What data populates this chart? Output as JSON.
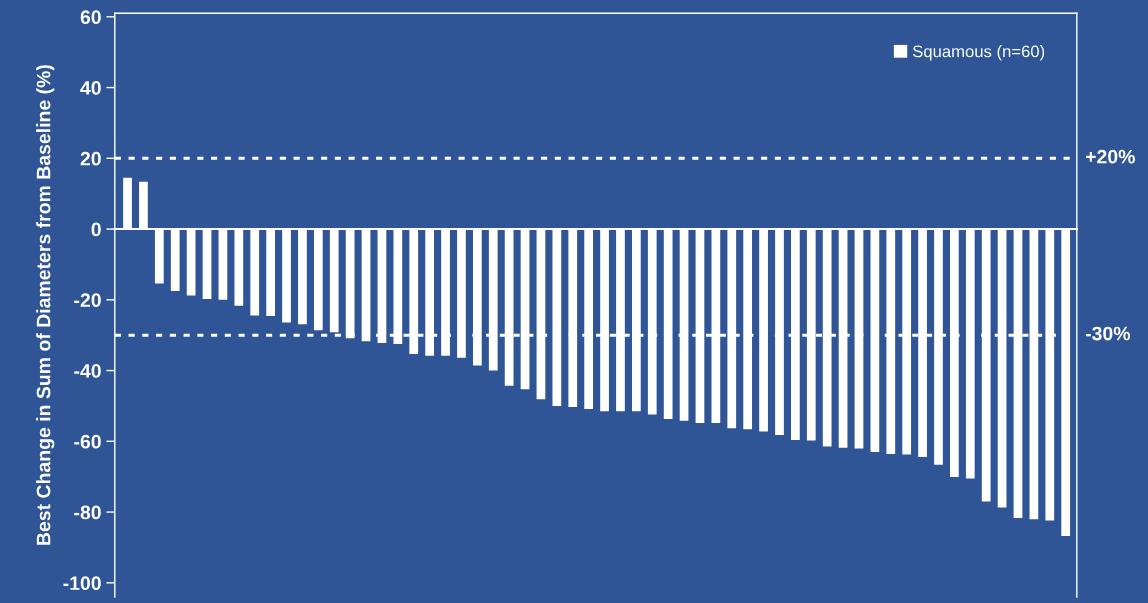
{
  "chart_data": {
    "type": "bar",
    "ylabel": "Best Change in Sum of Diameters from Baseline (%)",
    "categories": [
      null,
      null,
      null,
      null,
      null,
      null,
      null,
      null,
      null,
      null,
      null,
      null,
      null,
      null,
      null,
      null,
      null,
      null,
      null,
      null,
      null,
      null,
      null,
      null,
      null,
      null,
      null,
      null,
      null,
      null,
      null,
      null,
      null,
      null,
      null,
      null,
      null,
      null,
      null,
      null,
      null,
      null,
      null,
      null,
      null,
      null,
      null,
      null,
      null,
      null,
      null,
      null,
      null,
      null,
      null,
      null,
      null,
      null,
      null,
      null
    ],
    "series": [
      {
        "name": "Squamous (n=60)",
        "color": "#ffffff",
        "values": [
          14.5,
          13.4,
          -15.4,
          -17.5,
          -18.8,
          -19.8,
          -20,
          -21.7,
          -24.4,
          -24.6,
          -26.4,
          -26.9,
          -28.6,
          -29.2,
          -30.9,
          -31.7,
          -32.2,
          -32.5,
          -35.3,
          -35.8,
          -35.8,
          -36.4,
          -38.6,
          -40,
          -44.3,
          -45.3,
          -48.1,
          -50,
          -50.3,
          -50.9,
          -51.5,
          -51.5,
          -51.5,
          -52.4,
          -53.7,
          -54.2,
          -54.8,
          -54.8,
          -56.3,
          -56.6,
          -57.2,
          -58.2,
          -59.6,
          -59.8,
          -61.5,
          -61.8,
          -62,
          -63,
          -63.6,
          -63.7,
          -64.4,
          -66.6,
          -70.1,
          -70.5,
          -77,
          -78.7,
          -81.7,
          -82,
          -82.4,
          -86.8
        ]
      }
    ],
    "ylim": [
      -104,
      61
    ],
    "yticks": [
      -100,
      -80,
      -60,
      -40,
      -20,
      0,
      20,
      40,
      60
    ],
    "ref_lines": [
      {
        "axis": "y",
        "value": 20,
        "label": "+20%",
        "color": "#ffffff",
        "line_style": "dotted"
      },
      {
        "axis": "y",
        "value": -30,
        "label": "-30%",
        "color": "#ffffff",
        "line_style": "dotted"
      }
    ],
    "legend": "top right",
    "grid": false
  }
}
